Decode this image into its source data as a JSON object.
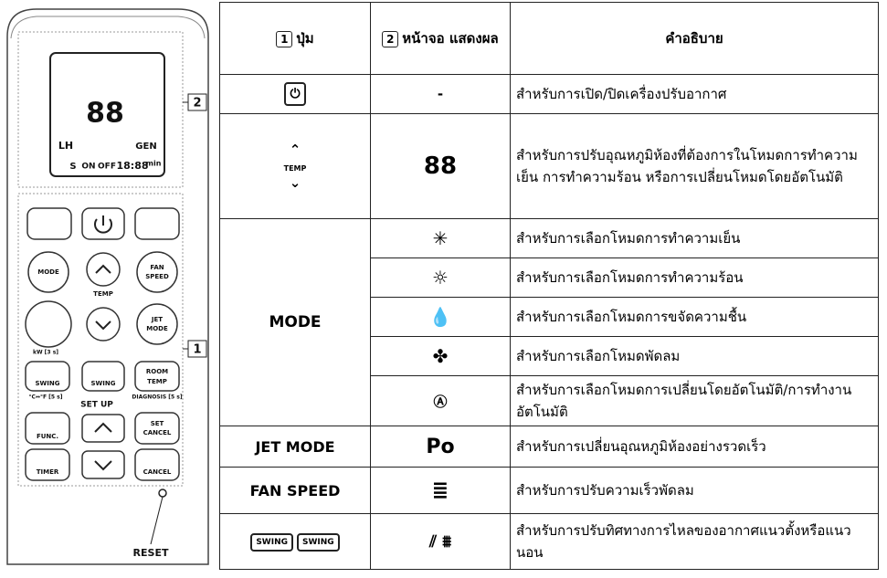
{
  "remote": {
    "callouts": [
      "2",
      "1"
    ],
    "lcd": {
      "digits": "88",
      "timer": "18:88",
      "min": "min",
      "lh": "LH",
      "gen": "GEN",
      "s": "S",
      "on": "ON",
      "off": "OFF"
    },
    "buttons": {
      "mode": "MODE",
      "temp": "TEMP",
      "fan": [
        "FAN",
        "SPEED"
      ],
      "jet": [
        "JET",
        "MODE"
      ],
      "kw": "kW [3 s]",
      "swing1": "SWING",
      "swing2": "SWING",
      "room": [
        "ROOM",
        "TEMP"
      ],
      "cf": "°C↔°F [5 s]",
      "diag": "DIAGNOSIS [5 s]",
      "setup": "SET UP",
      "func": "FUNC.",
      "setcancel": [
        "SET",
        "CANCEL"
      ],
      "timer": "TIMER",
      "cancel": "CANCEL"
    },
    "reset": "RESET"
  },
  "table": {
    "headers": [
      {
        "num": "1",
        "text": "ปุ่ม"
      },
      {
        "num": "2",
        "text": "หน้าจอ แสดงผล"
      },
      {
        "text": "คำอธิบาย"
      }
    ],
    "rows": [
      {
        "display": "-",
        "description": "สำหรับการเปิด/ปิดเครื่องปรับอากาศ"
      },
      {
        "button": "TEMP",
        "display": "88",
        "description": "สำหรับการปรับอุณหภูมิห้องที่ต้องการในโหมดการทำความเย็น การทำความร้อน หรือการเปลี่ยนโหมดโดยอัตโนมัติ"
      },
      {
        "button": "MODE",
        "description": "สำหรับการเลือกโหมดการทำความเย็น"
      },
      {
        "description": "สำหรับการเลือกโหมดการทำความร้อน"
      },
      {
        "description": "สำหรับการเลือกโหมดการขจัดความชื้น"
      },
      {
        "description": "สำหรับการเลือกโหมดพัดลม"
      },
      {
        "description": "สำหรับการเลือกโหมดการเปลี่ยนโดยอัตโนมัติ/การทำงานอัตโนมัติ"
      },
      {
        "button": "JET MODE",
        "display": "Po",
        "description": "สำหรับการเปลี่ยนอุณหภูมิห้องอย่างรวดเร็ว"
      },
      {
        "button": "FAN SPEED",
        "description": "สำหรับการปรับความเร็วพัดลม"
      },
      {
        "button": [
          "SWING",
          "SWING"
        ],
        "description": "สำหรับการปรับทิศทางการไหลของอากาศแนวตั้งหรือแนวนอน"
      }
    ]
  }
}
